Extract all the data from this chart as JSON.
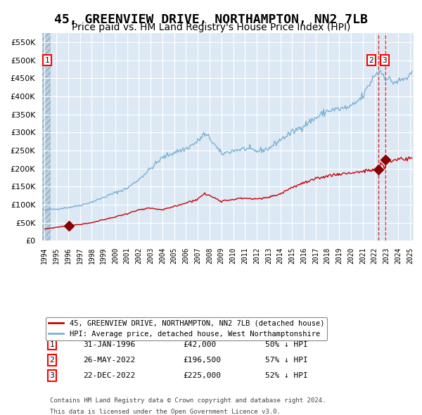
{
  "title": "45, GREENVIEW DRIVE, NORTHAMPTON, NN2 7LB",
  "subtitle": "Price paid vs. HM Land Registry's House Price Index (HPI)",
  "title_fontsize": 13,
  "subtitle_fontsize": 10,
  "background_color": "#ffffff",
  "plot_bg_color": "#dce9f5",
  "hpi_color": "#7ab0d4",
  "price_color": "#cc0000",
  "marker_color": "#8b0000",
  "ylim": [
    0,
    575000
  ],
  "yticks": [
    0,
    50000,
    100000,
    150000,
    200000,
    250000,
    300000,
    350000,
    400000,
    450000,
    500000,
    550000
  ],
  "legend_label_price": "45, GREENVIEW DRIVE, NORTHAMPTON, NN2 7LB (detached house)",
  "legend_label_hpi": "HPI: Average price, detached house, West Northamptonshire",
  "transactions": [
    {
      "num": 1,
      "date": "31-JAN-1996",
      "price": 42000,
      "pct": "50%",
      "dir": "↓"
    },
    {
      "num": 2,
      "date": "26-MAY-2022",
      "price": 196500,
      "pct": "57%",
      "dir": "↓"
    },
    {
      "num": 3,
      "date": "22-DEC-2022",
      "price": 225000,
      "pct": "52%",
      "dir": "↓"
    }
  ],
  "footnote1": "Contains HM Land Registry data © Crown copyright and database right 2024.",
  "footnote2": "This data is licensed under the Open Government Licence v3.0."
}
